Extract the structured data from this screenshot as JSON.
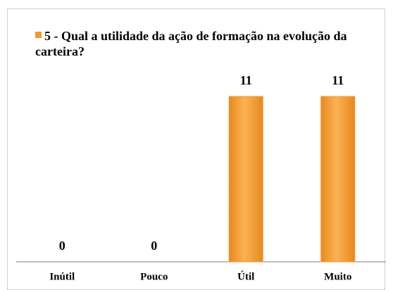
{
  "chart_data": {
    "type": "bar",
    "categories": [
      "Inútil",
      "Pouco",
      "Útil",
      "Muito"
    ],
    "series": [
      {
        "name": "5 - Qual a utilidade da ação de formação na evolução da carteira?",
        "color": "#f39a2c",
        "values": [
          0,
          0,
          11,
          11
        ]
      }
    ]
  }
}
